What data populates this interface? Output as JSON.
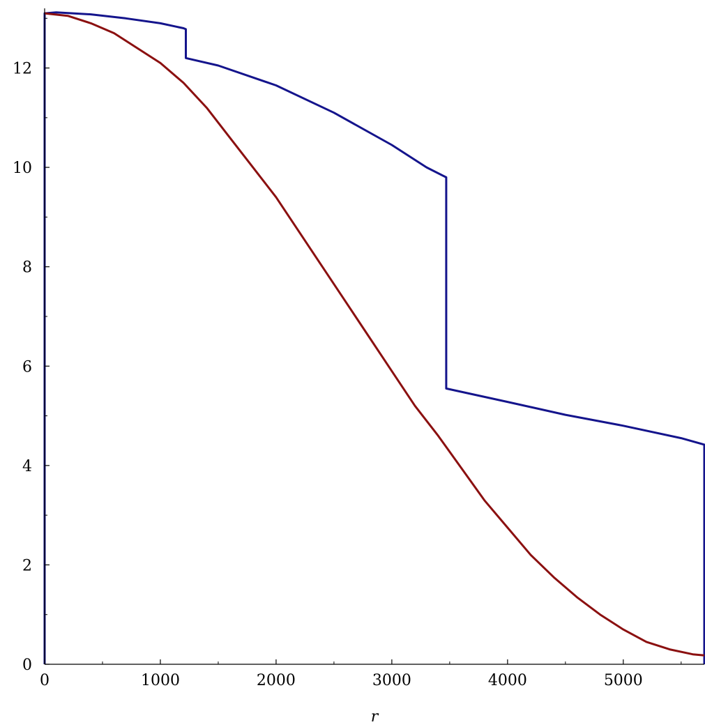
{
  "chart_data": {
    "type": "line",
    "title": "",
    "xlabel": "r",
    "ylabel": "",
    "xlim": [
      0,
      5700
    ],
    "ylim": [
      0,
      13.2
    ],
    "grid": false,
    "x_ticks": [
      0,
      1000,
      2000,
      3000,
      4000,
      5000
    ],
    "y_ticks": [
      0,
      2,
      4,
      6,
      8,
      10,
      12
    ],
    "x_tick_labels": [
      "0",
      "1000",
      "2000",
      "3000",
      "4000",
      "5000"
    ],
    "y_tick_labels": [
      "0",
      "2",
      "4",
      "6",
      "8",
      "10",
      "12"
    ],
    "series": [
      {
        "color": "#14148c",
        "x": [
          0,
          0,
          100,
          400,
          700,
          1000,
          1200,
          1220,
          1220,
          1500,
          2000,
          2500,
          3000,
          3300,
          3470,
          3470,
          3470,
          4000,
          4500,
          5000,
          5500,
          5700,
          5700
        ],
        "y": [
          0,
          13.1,
          13.12,
          13.08,
          13.0,
          12.9,
          12.8,
          12.78,
          12.2,
          12.05,
          11.65,
          11.1,
          10.45,
          10.0,
          9.8,
          9.8,
          5.55,
          5.28,
          5.02,
          4.8,
          4.55,
          4.42,
          0
        ]
      },
      {
        "color": "#8b1010",
        "x": [
          0,
          200,
          400,
          600,
          800,
          1000,
          1200,
          1400,
          1600,
          1800,
          2000,
          2200,
          2400,
          2600,
          2800,
          3000,
          3200,
          3400,
          3600,
          3800,
          4000,
          4200,
          4400,
          4600,
          4800,
          5000,
          5200,
          5400,
          5600,
          5700
        ],
        "y": [
          13.1,
          13.05,
          12.9,
          12.7,
          12.4,
          12.1,
          11.7,
          11.2,
          10.6,
          10.0,
          9.4,
          8.7,
          8.0,
          7.3,
          6.6,
          5.9,
          5.2,
          4.6,
          3.95,
          3.3,
          2.75,
          2.2,
          1.75,
          1.35,
          1.0,
          0.7,
          0.45,
          0.3,
          0.2,
          0.18
        ]
      }
    ]
  }
}
